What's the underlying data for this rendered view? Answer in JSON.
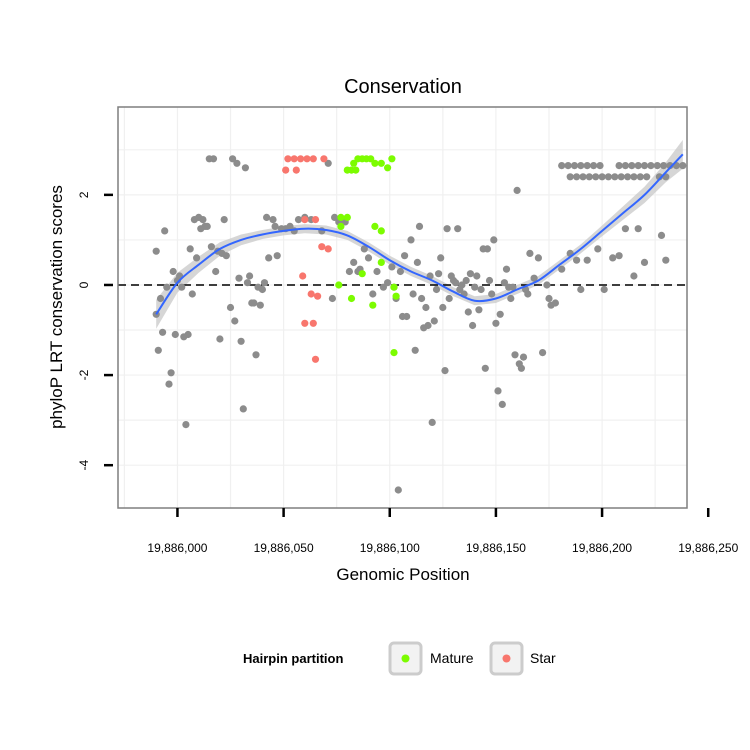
{
  "chart_data": {
    "type": "scatter",
    "title": "Conservation",
    "xlabel": "Genomic Position",
    "ylabel": "phyloP LRT conservation scores",
    "xlim": [
      19885972,
      19886240
    ],
    "ylim": [
      -4.95,
      3.95
    ],
    "x_ticks": [
      19886000,
      19886050,
      19886100,
      19886150,
      19886200,
      19886250
    ],
    "x_tick_labels": [
      "19,886,000",
      "19,886,050",
      "19,886,100",
      "19,886,150",
      "19,886,200",
      "19,886,250"
    ],
    "y_ticks": [
      -4,
      -2,
      0,
      2
    ],
    "y_tick_labels": [
      "-4",
      "-2",
      "0",
      "2"
    ],
    "grid": true,
    "reference_line": {
      "y": 0,
      "style": "dashed"
    },
    "legend": {
      "title": "Hairpin partition",
      "position": "bottom",
      "entries": [
        {
          "label": "Mature",
          "color": "#7cfc00"
        },
        {
          "label": "Star",
          "color": "#f8766d"
        }
      ]
    },
    "colors": {
      "other": "#8c8c8c",
      "smooth": "#3366ff",
      "band": "#c8c8c8"
    },
    "series": [
      {
        "name": "Other",
        "points": [
          [
            19885990,
            0.75
          ],
          [
            19885990,
            -0.65
          ],
          [
            19885991,
            -1.45
          ],
          [
            19885992,
            -0.3
          ],
          [
            19885993,
            -1.05
          ],
          [
            19885994,
            1.2
          ],
          [
            19885995,
            -0.05
          ],
          [
            19885996,
            -2.2
          ],
          [
            19885997,
            -1.95
          ],
          [
            19885998,
            0.3
          ],
          [
            19885999,
            -1.1
          ],
          [
            19886000,
            0.1
          ],
          [
            19886001,
            0.2
          ],
          [
            19886002,
            -0.05
          ],
          [
            19886003,
            -1.15
          ],
          [
            19886004,
            -3.1
          ],
          [
            19886005,
            -1.1
          ],
          [
            19886006,
            0.8
          ],
          [
            19886007,
            -0.2
          ],
          [
            19886008,
            1.45
          ],
          [
            19886009,
            0.6
          ],
          [
            19886010,
            1.5
          ],
          [
            19886011,
            1.25
          ],
          [
            19886012,
            1.45
          ],
          [
            19886013,
            1.3
          ],
          [
            19886014,
            1.3
          ],
          [
            19886015,
            2.8
          ],
          [
            19886016,
            0.85
          ],
          [
            19886017,
            2.8
          ],
          [
            19886018,
            0.3
          ],
          [
            19886019,
            0.75
          ],
          [
            19886020,
            -1.2
          ],
          [
            19886021,
            0.7
          ],
          [
            19886022,
            1.45
          ],
          [
            19886023,
            0.65
          ],
          [
            19886025,
            -0.5
          ],
          [
            19886026,
            2.8
          ],
          [
            19886027,
            -0.8
          ],
          [
            19886028,
            2.7
          ],
          [
            19886029,
            0.15
          ],
          [
            19886030,
            -1.25
          ],
          [
            19886031,
            -2.75
          ],
          [
            19886032,
            2.6
          ],
          [
            19886033,
            0.05
          ],
          [
            19886034,
            0.2
          ],
          [
            19886035,
            -0.4
          ],
          [
            19886036,
            -0.4
          ],
          [
            19886037,
            -1.55
          ],
          [
            19886038,
            -0.05
          ],
          [
            19886039,
            -0.45
          ],
          [
            19886040,
            -0.1
          ],
          [
            19886041,
            0.05
          ],
          [
            19886042,
            1.5
          ],
          [
            19886043,
            0.6
          ],
          [
            19886045,
            1.45
          ],
          [
            19886046,
            1.3
          ],
          [
            19886047,
            0.65
          ],
          [
            19886049,
            1.25
          ],
          [
            19886051,
            1.25
          ],
          [
            19886053,
            1.3
          ],
          [
            19886055,
            1.2
          ],
          [
            19886057,
            1.45
          ],
          [
            19886060,
            1.5
          ],
          [
            19886063,
            1.45
          ],
          [
            19886068,
            1.2
          ],
          [
            19886071,
            2.7
          ],
          [
            19886073,
            -0.3
          ],
          [
            19886074,
            1.5
          ],
          [
            19886076,
            1.4
          ],
          [
            19886079,
            1.4
          ],
          [
            19886081,
            0.3
          ],
          [
            19886083,
            0.5
          ],
          [
            19886085,
            0.3
          ],
          [
            19886086,
            0.35
          ],
          [
            19886088,
            0.8
          ],
          [
            19886090,
            0.6
          ],
          [
            19886092,
            -0.2
          ],
          [
            19886094,
            0.3
          ],
          [
            19886097,
            -0.05
          ],
          [
            19886099,
            0.05
          ],
          [
            19886101,
            0.4
          ],
          [
            19886102,
            -0.05
          ],
          [
            19886103,
            -0.3
          ],
          [
            19886104,
            -4.55
          ],
          [
            19886105,
            0.3
          ],
          [
            19886106,
            -0.7
          ],
          [
            19886107,
            0.65
          ],
          [
            19886108,
            -0.7
          ],
          [
            19886110,
            1.0
          ],
          [
            19886111,
            -0.2
          ],
          [
            19886112,
            -1.45
          ],
          [
            19886113,
            0.5
          ],
          [
            19886114,
            1.3
          ],
          [
            19886115,
            -0.3
          ],
          [
            19886116,
            -0.95
          ],
          [
            19886117,
            -0.5
          ],
          [
            19886118,
            -0.9
          ],
          [
            19886119,
            0.2
          ],
          [
            19886120,
            -3.05
          ],
          [
            19886121,
            -0.8
          ],
          [
            19886122,
            -0.1
          ],
          [
            19886123,
            0.25
          ],
          [
            19886124,
            0.6
          ],
          [
            19886125,
            -0.5
          ],
          [
            19886126,
            -1.9
          ],
          [
            19886127,
            1.25
          ],
          [
            19886128,
            -0.3
          ],
          [
            19886129,
            0.2
          ],
          [
            19886130,
            0.1
          ],
          [
            19886131,
            0.05
          ],
          [
            19886132,
            1.25
          ],
          [
            19886133,
            -0.1
          ],
          [
            19886134,
            0.0
          ],
          [
            19886135,
            -0.2
          ],
          [
            19886136,
            0.1
          ],
          [
            19886137,
            -0.6
          ],
          [
            19886138,
            0.25
          ],
          [
            19886139,
            -0.9
          ],
          [
            19886140,
            -0.05
          ],
          [
            19886141,
            0.2
          ],
          [
            19886142,
            -0.55
          ],
          [
            19886143,
            -0.1
          ],
          [
            19886144,
            0.8
          ],
          [
            19886145,
            -1.85
          ],
          [
            19886146,
            0.8
          ],
          [
            19886147,
            0.1
          ],
          [
            19886148,
            -0.2
          ],
          [
            19886149,
            1.0
          ],
          [
            19886150,
            -0.85
          ],
          [
            19886151,
            -2.35
          ],
          [
            19886152,
            -0.65
          ],
          [
            19886153,
            -2.65
          ],
          [
            19886154,
            0.05
          ],
          [
            19886155,
            0.35
          ],
          [
            19886156,
            -0.05
          ],
          [
            19886157,
            -0.3
          ],
          [
            19886158,
            -0.05
          ],
          [
            19886159,
            -1.55
          ],
          [
            19886160,
            2.1
          ],
          [
            19886161,
            -1.75
          ],
          [
            19886162,
            -1.85
          ],
          [
            19886163,
            -1.6
          ],
          [
            19886164,
            -0.1
          ],
          [
            19886165,
            -0.2
          ],
          [
            19886166,
            0.7
          ],
          [
            19886168,
            0.15
          ],
          [
            19886170,
            0.6
          ],
          [
            19886172,
            -1.5
          ],
          [
            19886174,
            0.0
          ],
          [
            19886175,
            -0.3
          ],
          [
            19886176,
            -0.45
          ],
          [
            19886178,
            -0.4
          ],
          [
            19886181,
            0.35
          ],
          [
            19886185,
            0.7
          ],
          [
            19886188,
            0.55
          ],
          [
            19886190,
            -0.1
          ],
          [
            19886193,
            0.55
          ],
          [
            19886198,
            0.8
          ],
          [
            19886201,
            -0.1
          ],
          [
            19886205,
            0.6
          ],
          [
            19886208,
            0.65
          ],
          [
            19886211,
            1.25
          ],
          [
            19886215,
            0.2
          ],
          [
            19886217,
            1.25
          ],
          [
            19886220,
            0.5
          ],
          [
            19886228,
            1.1
          ],
          [
            19886230,
            0.55
          ],
          [
            19886181,
            2.65
          ],
          [
            19886184,
            2.65
          ],
          [
            19886187,
            2.65
          ],
          [
            19886190,
            2.65
          ],
          [
            19886193,
            2.65
          ],
          [
            19886196,
            2.65
          ],
          [
            19886199,
            2.65
          ],
          [
            19886185,
            2.4
          ],
          [
            19886188,
            2.4
          ],
          [
            19886191,
            2.4
          ],
          [
            19886194,
            2.4
          ],
          [
            19886197,
            2.4
          ],
          [
            19886200,
            2.4
          ],
          [
            19886203,
            2.4
          ],
          [
            19886206,
            2.4
          ],
          [
            19886209,
            2.4
          ],
          [
            19886212,
            2.4
          ],
          [
            19886208,
            2.65
          ],
          [
            19886211,
            2.65
          ],
          [
            19886214,
            2.65
          ],
          [
            19886217,
            2.65
          ],
          [
            19886220,
            2.65
          ],
          [
            19886223,
            2.65
          ],
          [
            19886226,
            2.65
          ],
          [
            19886229,
            2.65
          ],
          [
            19886232,
            2.65
          ],
          [
            19886235,
            2.65
          ],
          [
            19886238,
            2.65
          ],
          [
            19886215,
            2.4
          ],
          [
            19886218,
            2.4
          ],
          [
            19886221,
            2.4
          ],
          [
            19886227,
            2.4
          ],
          [
            19886230,
            2.4
          ]
        ]
      },
      {
        "name": "Star",
        "points": [
          [
            19886052,
            2.8
          ],
          [
            19886055,
            2.8
          ],
          [
            19886058,
            2.8
          ],
          [
            19886061,
            2.8
          ],
          [
            19886064,
            2.8
          ],
          [
            19886069,
            2.8
          ],
          [
            19886051,
            2.55
          ],
          [
            19886056,
            2.55
          ],
          [
            19886060,
            1.45
          ],
          [
            19886065,
            1.45
          ],
          [
            19886059,
            0.2
          ],
          [
            19886063,
            -0.2
          ],
          [
            19886066,
            -0.25
          ],
          [
            19886060,
            -0.85
          ],
          [
            19886064,
            -0.85
          ],
          [
            19886065,
            -1.65
          ],
          [
            19886068,
            0.85
          ],
          [
            19886071,
            0.8
          ]
        ]
      },
      {
        "name": "Mature",
        "points": [
          [
            19886080,
            2.55
          ],
          [
            19886082,
            2.55
          ],
          [
            19886084,
            2.55
          ],
          [
            19886083,
            2.7
          ],
          [
            19886085,
            2.8
          ],
          [
            19886087,
            2.8
          ],
          [
            19886089,
            2.8
          ],
          [
            19886091,
            2.8
          ],
          [
            19886093,
            2.7
          ],
          [
            19886096,
            2.7
          ],
          [
            19886099,
            2.6
          ],
          [
            19886101,
            2.8
          ],
          [
            19886077,
            1.5
          ],
          [
            19886080,
            1.5
          ],
          [
            19886077,
            1.3
          ],
          [
            19886093,
            1.3
          ],
          [
            19886096,
            1.2
          ],
          [
            19886096,
            0.5
          ],
          [
            19886087,
            0.25
          ],
          [
            19886076,
            0.0
          ],
          [
            19886082,
            -0.3
          ],
          [
            19886092,
            -0.45
          ],
          [
            19886102,
            -0.05
          ],
          [
            19886103,
            -0.25
          ],
          [
            19886102,
            -1.5
          ]
        ]
      },
      {
        "name": "Smooth fit",
        "line_points": [
          [
            19885990,
            -0.65
          ],
          [
            19886000,
            0.05
          ],
          [
            19886010,
            0.45
          ],
          [
            19886020,
            0.8
          ],
          [
            19886030,
            1.0
          ],
          [
            19886040,
            1.12
          ],
          [
            19886050,
            1.2
          ],
          [
            19886060,
            1.25
          ],
          [
            19886070,
            1.22
          ],
          [
            19886080,
            1.1
          ],
          [
            19886090,
            0.85
          ],
          [
            19886100,
            0.55
          ],
          [
            19886110,
            0.3
          ],
          [
            19886120,
            0.1
          ],
          [
            19886130,
            -0.15
          ],
          [
            19886140,
            -0.35
          ],
          [
            19886150,
            -0.3
          ],
          [
            19886160,
            -0.1
          ],
          [
            19886170,
            0.1
          ],
          [
            19886180,
            0.45
          ],
          [
            19886190,
            0.8
          ],
          [
            19886200,
            1.2
          ],
          [
            19886210,
            1.6
          ],
          [
            19886220,
            2.0
          ],
          [
            19886230,
            2.5
          ],
          [
            19886238,
            2.9
          ]
        ],
        "band_halfwidth": [
          0.32,
          0.22,
          0.18,
          0.15,
          0.12,
          0.1,
          0.1,
          0.1,
          0.1,
          0.1,
          0.1,
          0.1,
          0.1,
          0.1,
          0.1,
          0.1,
          0.1,
          0.1,
          0.1,
          0.1,
          0.1,
          0.12,
          0.15,
          0.18,
          0.22,
          0.32
        ]
      }
    ]
  }
}
